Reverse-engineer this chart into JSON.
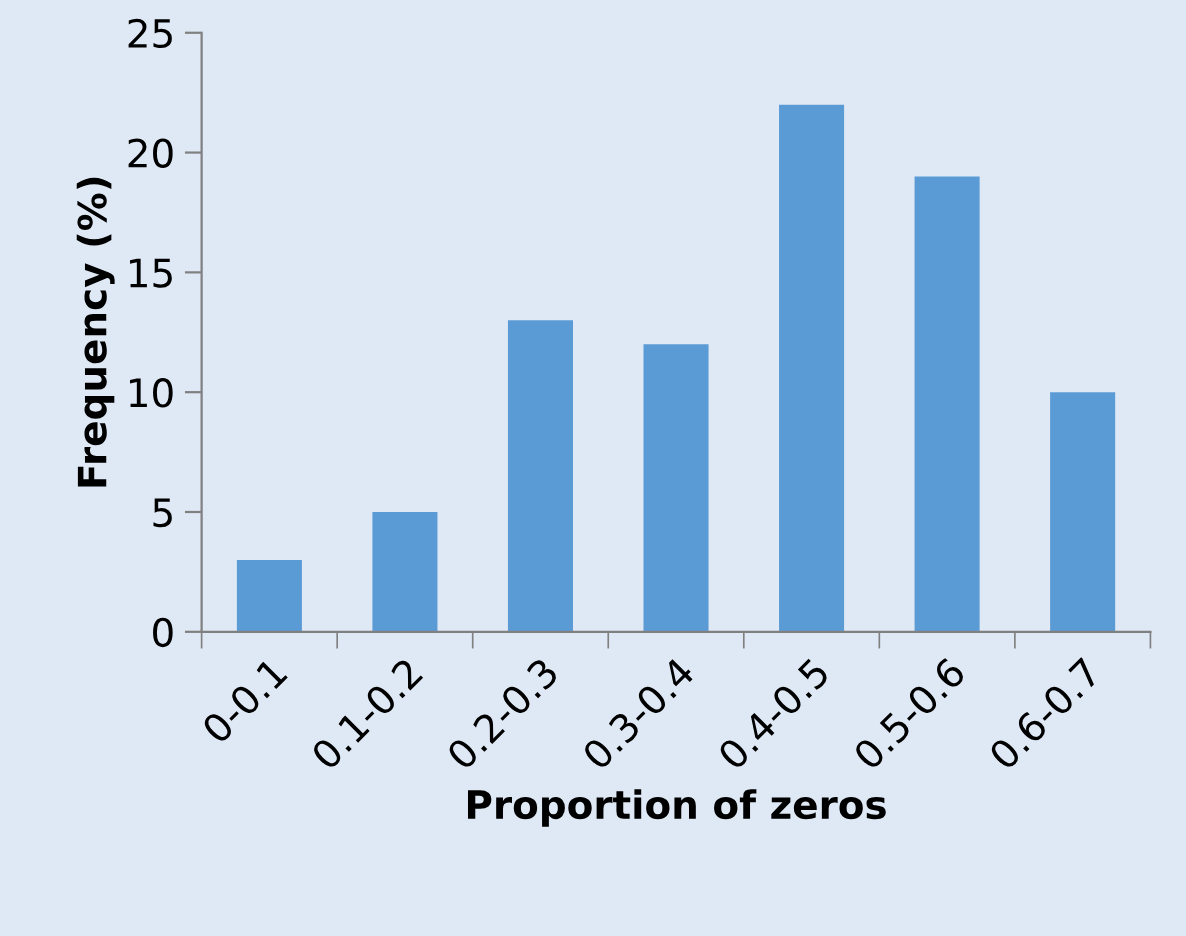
{
  "chart_data": {
    "type": "bar",
    "xlabel": "Proportion of zeros",
    "ylabel": "Frequency (%)",
    "categories": [
      "0-0.1",
      "0.1-0.2",
      "0.2-0.3",
      "0.3-0.4",
      "0.4-0.5",
      "0.5-0.6",
      "0.6-0.7"
    ],
    "values": [
      3,
      5,
      13,
      12,
      22,
      19,
      10
    ],
    "color": "#5b9bd5",
    "ylim": [
      0,
      25
    ],
    "yticks": [
      0,
      5,
      10,
      15,
      20,
      25
    ],
    "grid": false,
    "legend": false
  }
}
